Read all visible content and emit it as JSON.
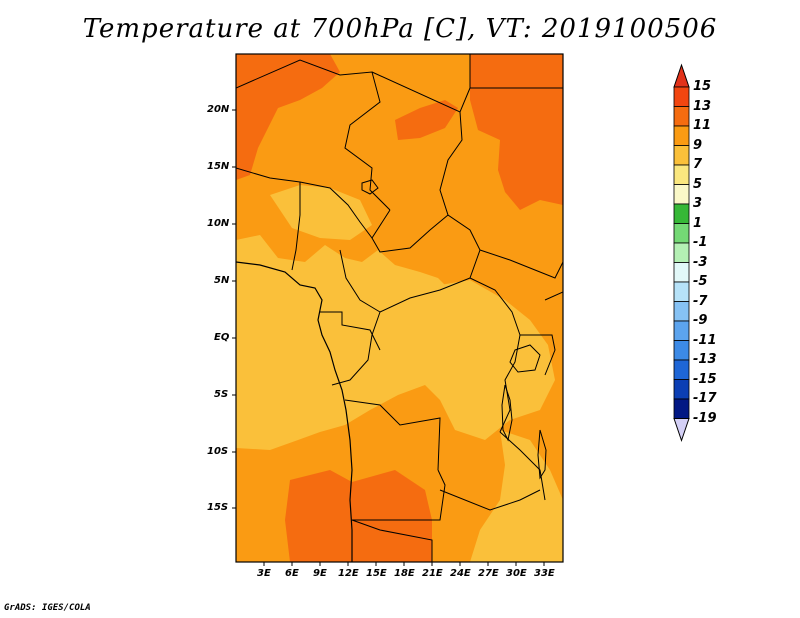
{
  "title": "Temperature at 700hPa [C], VT: 2019100506",
  "credit": "GrADS: IGES/COLA",
  "map": {
    "region": "Central Africa",
    "field": "700hPa temperature",
    "units": "C",
    "lat_range": [
      -20,
      25
    ],
    "lon_range": [
      0,
      35
    ],
    "lat_labels": [
      "20N",
      "15N",
      "10N",
      "5N",
      "EQ",
      "5S",
      "10S",
      "15S"
    ],
    "lon_labels": [
      "3E",
      "6E",
      "9E",
      "12E",
      "15E",
      "18E",
      "21E",
      "24E",
      "27E",
      "30E",
      "33E"
    ],
    "fill_colors": {
      "7_to_9": "#fac03a",
      "9_to_11": "#fa9b13",
      "11_to_13": "#f56c10"
    }
  },
  "colorbar": {
    "levels": [
      "15",
      "13",
      "11",
      "9",
      "7",
      "5",
      "3",
      "1",
      "-1",
      "-3",
      "-5",
      "-7",
      "-9",
      "-11",
      "-13",
      "-15",
      "-17",
      "-19"
    ],
    "colors": [
      "#e2321a",
      "#f24610",
      "#f56c10",
      "#fa9b13",
      "#fac03a",
      "#fae77f",
      "#faf8c8",
      "#36b837",
      "#74d975",
      "#b4f0b4",
      "#e2f8f8",
      "#b6e2f8",
      "#86c2f4",
      "#5ca4ee",
      "#3c8ae6",
      "#1e66d6",
      "#0c3fb4",
      "#021884",
      "#d4d0f6"
    ]
  }
}
